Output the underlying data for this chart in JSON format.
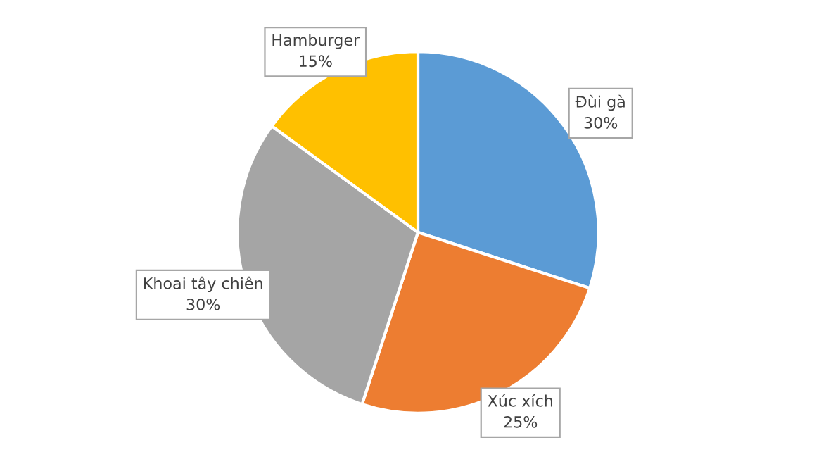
{
  "chart_data": {
    "type": "pie",
    "categories": [
      "Đùi gà",
      "Xúc xích",
      "Khoai tây chiên",
      "Hamburger"
    ],
    "values": [
      30,
      25,
      30,
      15
    ],
    "colors": [
      "#5b9bd5",
      "#ed7d31",
      "#a5a5a5",
      "#ffc000"
    ],
    "value_labels": [
      "30%",
      "25%",
      "30%",
      "15%"
    ]
  }
}
